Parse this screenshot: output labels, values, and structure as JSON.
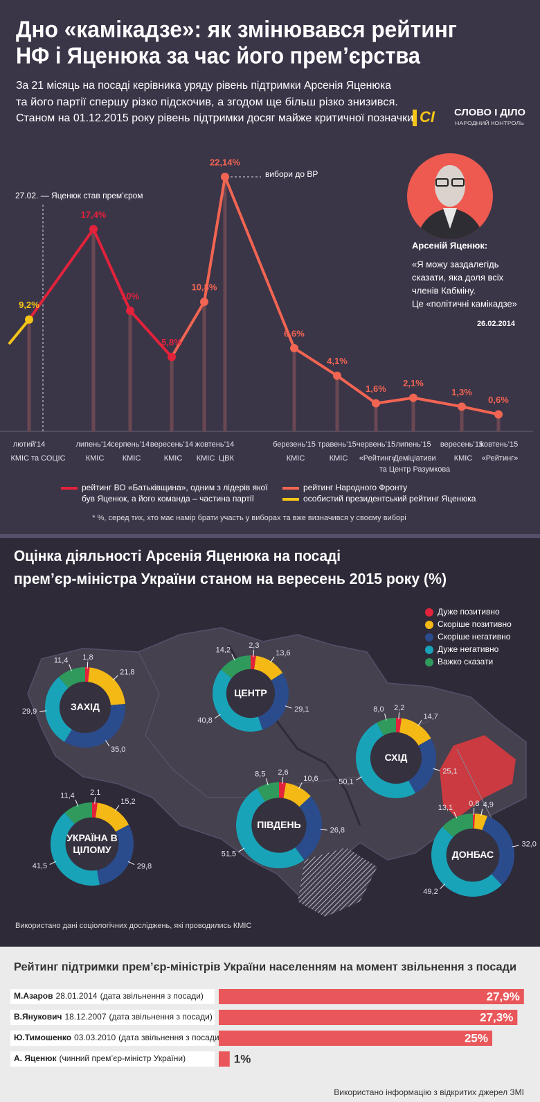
{
  "header": {
    "title": [
      "Дно «камікадзе»: як змінювався рейтинг",
      "НФ і Яценюка за час його прем’єрства"
    ],
    "subtitle": [
      "За 21 місяць на посаді керівника уряду рівень підтримки Арсенія Яценюка",
      "та його партії спершу різко підскочив, а згодом ще більш різко знизився.",
      "Станом на 01.12.2015 року рівень підтримки досяг майже критичної позначки"
    ],
    "logo": {
      "mark": "СІ",
      "name": "СЛОВО І ДІЛО",
      "tagline": "НАРОДНИЙ КОНТРОЛЬ"
    }
  },
  "quote": {
    "name": "Арсеній Яценюк:",
    "lines": [
      "«Я можу заздалегідь",
      "сказати, яка доля всіх",
      "членів Кабміну.",
      "Це «політичні камікадзе»"
    ],
    "date": "26.02.2014"
  },
  "chart_data": [
    {
      "type": "line",
      "categories": [
        "лютий’14",
        "липень’14",
        "серпень’14",
        "вересень’14",
        "жовтень’14",
        null,
        "березень’15",
        "травень’15",
        "червень’15",
        "липень’15",
        "вересень’15",
        "жовтень’15"
      ],
      "sources": [
        [
          "КМІС та СОЦІС"
        ],
        [
          "КМІС"
        ],
        [
          "КМІС"
        ],
        [
          "КМІС"
        ],
        [
          "КМІС"
        ],
        [
          "ЦВК"
        ],
        [
          "КМІС"
        ],
        [
          "КМІС"
        ],
        [
          "«Рейтинг»"
        ],
        [
          "Деміціативи",
          "та Центр Разумкова"
        ],
        [
          "КМІС"
        ],
        [
          "«Рейтинг»"
        ]
      ],
      "series": [
        {
          "name": "особистий президентський рейтинг Яценюка",
          "color": "#f5c518",
          "values": [
            9.2,
            null,
            null,
            null,
            null,
            null,
            null,
            null,
            null,
            null,
            null,
            null
          ],
          "value_labels": [
            "9,2%",
            null,
            null,
            null,
            null,
            null,
            null,
            null,
            null,
            null,
            null,
            null
          ]
        },
        {
          "name": "рейтинг ВО «Батьківщина», одним з лідерів якої був Яценюк, а його команда – частина партії",
          "color": "#e3223b",
          "values": [
            null,
            17.4,
            10,
            5.8,
            null,
            null,
            null,
            null,
            null,
            null,
            null,
            null
          ],
          "value_labels": [
            null,
            "17,4%",
            "10%",
            "5,8%",
            null,
            null,
            null,
            null,
            null,
            null,
            null,
            null
          ]
        },
        {
          "name": "рейтинг Народного Фронту",
          "color": "#f26552",
          "values": [
            null,
            null,
            null,
            null,
            10.8,
            22.14,
            6.6,
            4.1,
            1.6,
            2.1,
            1.3,
            0.6
          ],
          "value_labels": [
            null,
            null,
            null,
            null,
            "10,8%",
            "22,14%",
            "6,6%",
            "4,1%",
            "1,6%",
            "2,1%",
            "1,3%",
            "0,6%"
          ]
        }
      ],
      "annotations": [
        "27.02. — Яценюк став прем’єром",
        "вибори до ВР"
      ],
      "footnote": "* %, серед тих, хто має намір брати участь у виборах та вже визначився у своєму виборі"
    },
    {
      "type": "donut",
      "title": [
        "Оцінка діяльності Арсенія Яценюка на посаді",
        "прем’єр-міністра України станом на вересень 2015 року (%)"
      ],
      "categories": [
        "Дуже позитивно",
        "Скоріше позитивно",
        "Скоріше негативно",
        "Дуже негативно",
        "Важко сказати"
      ],
      "colors": [
        "#e3223b",
        "#f5b915",
        "#2b4c8c",
        "#19a3b9",
        "#2f9a5c"
      ],
      "series": [
        {
          "name": "ЗАХІД",
          "values": [
            1.8,
            21.8,
            35.0,
            29.9,
            11.4
          ],
          "value_labels": [
            "1,8",
            "21,8",
            "35,0",
            "29,9",
            "11,4"
          ]
        },
        {
          "name": "ЦЕНТР",
          "values": [
            2.3,
            13.6,
            29.1,
            40.8,
            14.2
          ],
          "value_labels": [
            "2,3",
            "13,6",
            "29,1",
            "40,8",
            "14,2"
          ]
        },
        {
          "name": "СХІД",
          "values": [
            2.2,
            14.7,
            25.1,
            50.1,
            8.0
          ],
          "value_labels": [
            "2,2",
            "14,7",
            "25,1",
            "50,1",
            "8,0"
          ]
        },
        {
          "name": "УКРАЇНА В ЦІЛОМУ",
          "values": [
            2.1,
            15.2,
            29.8,
            41.5,
            11.4
          ],
          "value_labels": [
            "2.1",
            "15,2",
            "29,8",
            "41,5",
            "11,4"
          ]
        },
        {
          "name": "ПІВДЕНЬ",
          "values": [
            2.6,
            10.6,
            26.8,
            51.5,
            8.5
          ],
          "value_labels": [
            "2,6",
            "10,6",
            "26,8",
            "51,5",
            "8,5"
          ]
        },
        {
          "name": "ДОНБАС",
          "values": [
            0.8,
            4.9,
            32.0,
            49.2,
            13.1
          ],
          "value_labels": [
            "0,8",
            "4,9",
            "32,0",
            "49,2",
            "13,1"
          ]
        }
      ],
      "note": "Використано дані соціологічних досліджень, які проводились КМІС"
    },
    {
      "type": "bar",
      "title": "Рейтинг підтримки прем’єр-міністрів України населенням на момент звільнення з посади",
      "categories": [
        "М.Азаров",
        "В.Янукович",
        "Ю.Тимошенко",
        "А. Яценюк"
      ],
      "dates": [
        "28.01.2014",
        "18.12.2007",
        "03.03.2010",
        null
      ],
      "notes": [
        "(дата звільнення з посади)",
        "(дата звільнення з посади)",
        "(дата звільнення з посади)",
        "(чинний прем’єр-міністр України)"
      ],
      "values": [
        27.9,
        27.3,
        25,
        1
      ],
      "value_labels": [
        "27,9%",
        "27,3%",
        "25%",
        "1%"
      ],
      "color": "#e9575a",
      "source": "Використано інформацію з відкритих джерел ЗМІ"
    }
  ]
}
